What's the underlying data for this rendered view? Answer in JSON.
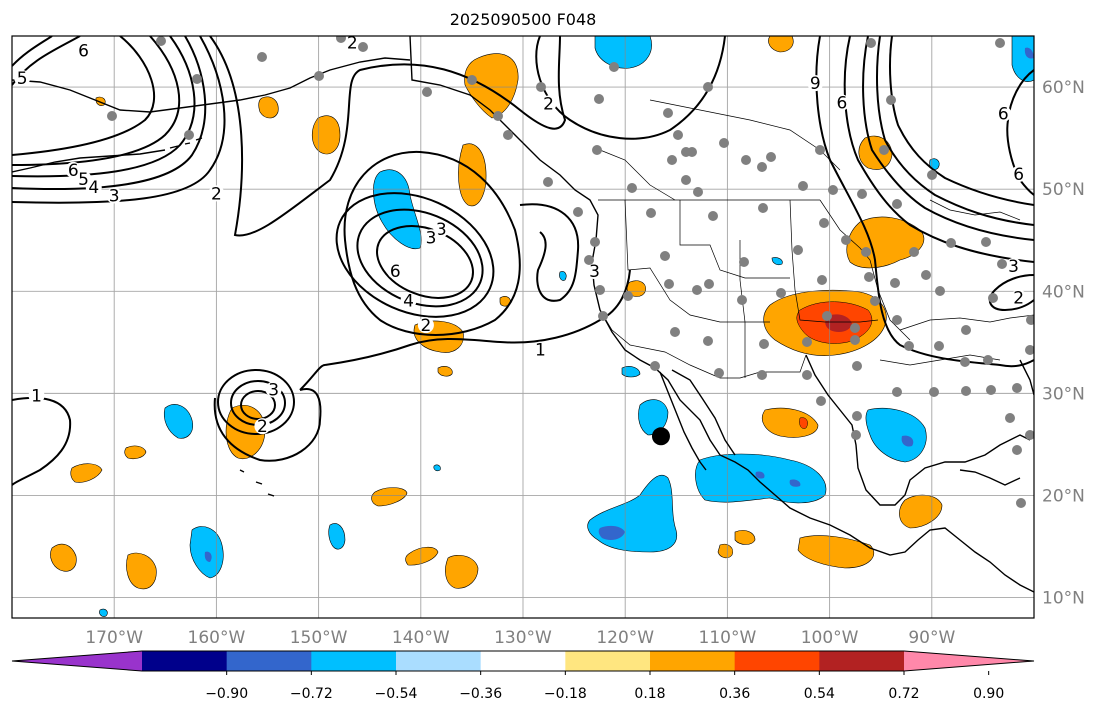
{
  "title": "2025090500 F048",
  "map": {
    "lon_range": [
      -180,
      -80
    ],
    "lat_range": [
      8,
      65
    ],
    "lat_ticks": [
      {
        "lat": 60,
        "label": "60°N"
      },
      {
        "lat": 50,
        "label": "50°N"
      },
      {
        "lat": 40,
        "label": "40°N"
      },
      {
        "lat": 30,
        "label": "30°N"
      },
      {
        "lat": 20,
        "label": "20°N"
      },
      {
        "lat": 10,
        "label": "10°N"
      }
    ],
    "lon_ticks": [
      {
        "lon": -170,
        "label": "170°W"
      },
      {
        "lon": -160,
        "label": "160°W"
      },
      {
        "lon": -150,
        "label": "150°W"
      },
      {
        "lon": -140,
        "label": "140°W"
      },
      {
        "lon": -130,
        "label": "130°W"
      },
      {
        "lon": -120,
        "label": "120°W"
      },
      {
        "lon": -110,
        "label": "110°W"
      },
      {
        "lon": -100,
        "label": "100°W"
      },
      {
        "lon": -90,
        "label": "90°W"
      }
    ],
    "gridlines": true,
    "black_marker": {
      "lon": -116.5,
      "lat": 25.8
    }
  },
  "colorbar": {
    "colors": [
      "#9933cc",
      "#00008b",
      "#3366cc",
      "#00bfff",
      "#aaddff",
      "#ffffff",
      "#ffe680",
      "#ffa500",
      "#ff4500",
      "#b22222",
      "#ff88aa"
    ],
    "tick_labels": [
      "−0.90",
      "−0.72",
      "−0.54",
      "−0.36",
      "−0.18",
      "0.18",
      "0.36",
      "0.54",
      "0.72",
      "0.90"
    ]
  },
  "contour_labels": [
    {
      "text": "6",
      "lon": -173,
      "lat": 63
    },
    {
      "text": "5",
      "lon": -179,
      "lat": 60.3
    },
    {
      "text": "6",
      "lon": -174,
      "lat": 51.3
    },
    {
      "text": "5",
      "lon": -173,
      "lat": 50.4
    },
    {
      "text": "4",
      "lon": -172,
      "lat": 49.6
    },
    {
      "text": "3",
      "lon": -170,
      "lat": 48.8
    },
    {
      "text": "2",
      "lon": -160,
      "lat": 49
    },
    {
      "text": "2",
      "lon": -146.7,
      "lat": 63.8
    },
    {
      "text": "2",
      "lon": -127.5,
      "lat": 57.8
    },
    {
      "text": "3",
      "lon": -138,
      "lat": 45.5
    },
    {
      "text": "3",
      "lon": -139,
      "lat": 44.7
    },
    {
      "text": "6",
      "lon": -142.5,
      "lat": 41.4
    },
    {
      "text": "4",
      "lon": -141.2,
      "lat": 38.5
    },
    {
      "text": "2",
      "lon": -139.5,
      "lat": 36.1
    },
    {
      "text": "3",
      "lon": -123,
      "lat": 41.4
    },
    {
      "text": "1",
      "lon": -128.3,
      "lat": 33.7
    },
    {
      "text": "3",
      "lon": -154.4,
      "lat": 29.8
    },
    {
      "text": "2",
      "lon": -155.5,
      "lat": 26.2
    },
    {
      "text": "1",
      "lon": -177.6,
      "lat": 29.2
    },
    {
      "text": "9",
      "lon": -101.4,
      "lat": 59.8
    },
    {
      "text": "6",
      "lon": -98.8,
      "lat": 57.9
    },
    {
      "text": "6",
      "lon": -83,
      "lat": 56.8
    },
    {
      "text": "6",
      "lon": -81.5,
      "lat": 50.9
    },
    {
      "text": "3",
      "lon": -82,
      "lat": 41.9
    },
    {
      "text": "2",
      "lon": -81.5,
      "lat": 38.8
    }
  ]
}
